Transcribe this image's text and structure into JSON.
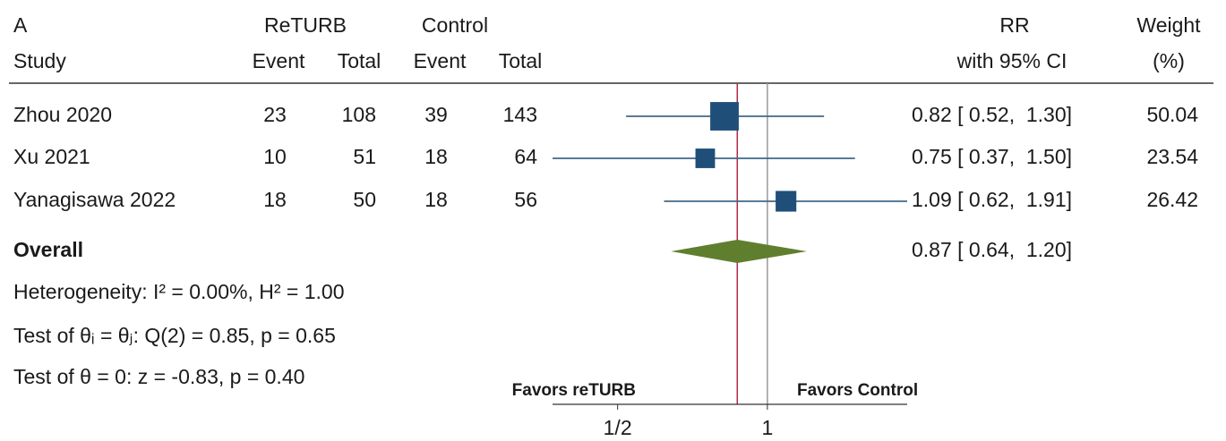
{
  "chart_data": {
    "type": "forest",
    "panel_label": "A",
    "group_headers": [
      "ReTURB",
      "Control"
    ],
    "columns": [
      "Study",
      "Event",
      "Total",
      "Event",
      "Total"
    ],
    "effect_header": [
      "RR",
      "with 95% CI"
    ],
    "weight_header": [
      "Weight",
      "(%)"
    ],
    "studies": [
      {
        "name": "Zhou 2020",
        "events_treat": 23,
        "total_treat": 108,
        "events_ctrl": 39,
        "total_ctrl": 143,
        "rr": 0.82,
        "ci": [
          0.52,
          1.3
        ],
        "estimate_label": "0.82 [ 0.52,  1.30]",
        "weight": 50.04
      },
      {
        "name": "Xu 2021",
        "events_treat": 10,
        "total_treat": 51,
        "events_ctrl": 18,
        "total_ctrl": 64,
        "rr": 0.75,
        "ci": [
          0.37,
          1.5
        ],
        "estimate_label": "0.75 [ 0.37,  1.50]",
        "weight": 23.54
      },
      {
        "name": "Yanagisawa 2022",
        "events_treat": 18,
        "total_treat": 50,
        "events_ctrl": 18,
        "total_ctrl": 56,
        "rr": 1.09,
        "ci": [
          0.62,
          1.91
        ],
        "estimate_label": "1.09 [ 0.62,  1.91]",
        "weight": 26.42
      }
    ],
    "overall": {
      "name": "Overall",
      "rr": 0.87,
      "ci": [
        0.64,
        1.2
      ],
      "estimate_label": "0.87 [ 0.64,  1.20]"
    },
    "stats": [
      "Heterogeneity: I² = 0.00%, H² = 1.00",
      "Test of θᵢ = θⱼ: Q(2) = 0.85, p = 0.65",
      "Test of θ = 0: z = -0.83, p = 0.40"
    ],
    "favors": [
      "Favors reTURB",
      "Favors Control"
    ],
    "xscale": "log",
    "xlim": [
      0.37,
      1.91
    ],
    "xticks": [
      {
        "value": 0.5,
        "label": "1/2"
      },
      1
    ],
    "reference_line": 1,
    "colors": {
      "study": "#1f4e79",
      "ci_line": "#3f6a8a",
      "overall": "#5f7f2e",
      "overall_line": "#b0284a",
      "reference": "#999999",
      "favors": "#2e5a1c"
    }
  }
}
